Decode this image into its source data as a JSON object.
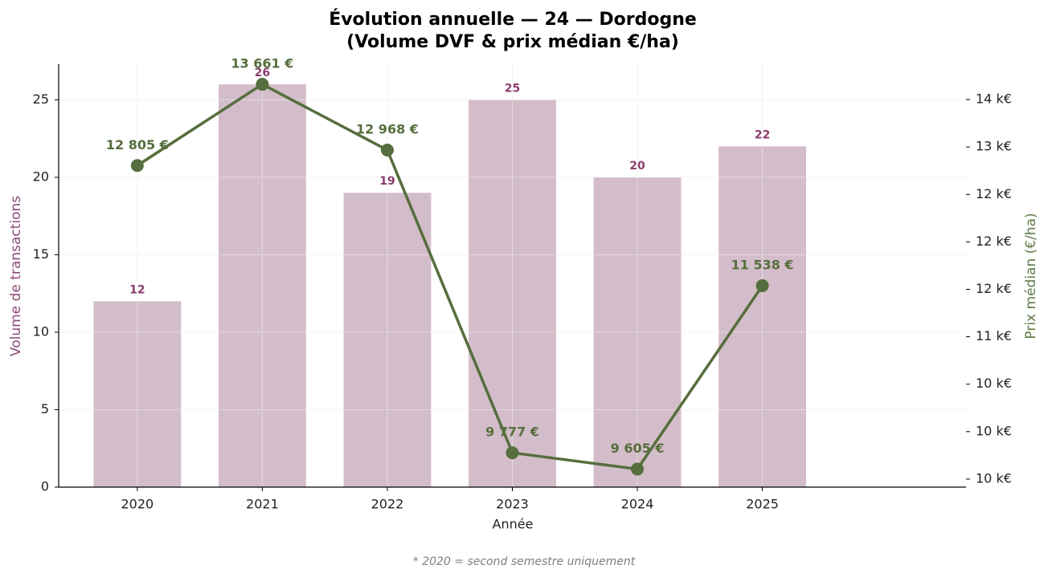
{
  "chart_data": {
    "type": "bar",
    "title": "Évolution annuelle — 24 — Dordogne",
    "subtitle": "(Volume DVF & prix médian €/ha)",
    "x_label": "Année",
    "y_label": "Volume de transactions",
    "y2_label": "Prix médian (€/ha)",
    "footnote": "* 2020 = second semestre uniquement",
    "categories": [
      "2020",
      "2021",
      "2022",
      "2023",
      "2024",
      "2025"
    ],
    "series": [
      {
        "name": "Volume de transactions",
        "type": "bar",
        "color": "#d4bdca",
        "label_color": "#8b3d6e",
        "values": [
          12,
          26,
          19,
          25,
          20,
          22
        ]
      },
      {
        "name": "Prix médian (€/ha)",
        "type": "line",
        "axis": "y2",
        "color": "#566e3d",
        "values": [
          12805,
          13661,
          12968,
          9777,
          9605,
          11538
        ],
        "value_labels": [
          "12 805 €",
          "13 661 €",
          "12 968 €",
          "9 777 €",
          "9 605 €",
          "11 538 €"
        ]
      }
    ],
    "ylim": [
      0,
      27.3
    ],
    "yticks": [
      0,
      5,
      10,
      15,
      20,
      25
    ],
    "y2lim": [
      9415,
      13873
    ],
    "y2ticks": [
      {
        "value": 9500,
        "label": "10 k€"
      },
      {
        "value": 10000,
        "label": "10 k€"
      },
      {
        "value": 10500,
        "label": "10 k€"
      },
      {
        "value": 11000,
        "label": "11 k€"
      },
      {
        "value": 11500,
        "label": "12 k€"
      },
      {
        "value": 12000,
        "label": "12 k€"
      },
      {
        "value": 12500,
        "label": "12 k€"
      },
      {
        "value": 13000,
        "label": "13 k€"
      },
      {
        "value": 13500,
        "label": "14 k€"
      }
    ],
    "grid": true
  }
}
